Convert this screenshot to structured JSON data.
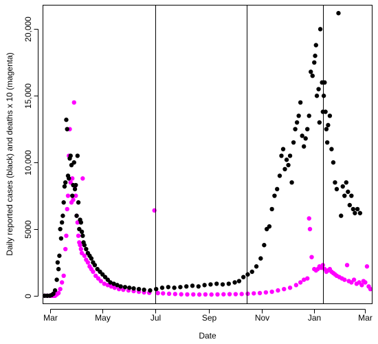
{
  "chart_data": {
    "type": "scatter",
    "title": "",
    "xlabel": "Date",
    "ylabel": "Daily reported cases (black) and deaths x 10 (magenta)",
    "xlim": [
      "2020-02-22",
      "2021-03-09"
    ],
    "ylim": [
      -600,
      21800
    ],
    "x_ticks": [
      {
        "date": "2020-03-01",
        "label": "Mar"
      },
      {
        "date": "2020-05-01",
        "label": "May"
      },
      {
        "date": "2020-07-01",
        "label": "Jul"
      },
      {
        "date": "2020-09-01",
        "label": "Sep"
      },
      {
        "date": "2020-11-01",
        "label": "Nov"
      },
      {
        "date": "2021-01-01",
        "label": "Jan"
      },
      {
        "date": "2021-03-01",
        "label": "Mar"
      }
    ],
    "y_ticks": [
      {
        "value": 0,
        "label": "0"
      },
      {
        "value": 5000,
        "label": "5000"
      },
      {
        "value": 10000,
        "label": "10,000"
      },
      {
        "value": 15000,
        "label": "15,000"
      },
      {
        "value": 20000,
        "label": "20,000"
      }
    ],
    "vlines": [
      "2020-07-01",
      "2020-10-15",
      "2021-01-11"
    ],
    "grid": false,
    "legend": "none",
    "colors": {
      "cases": "#000000",
      "deaths": "#ff00ff"
    },
    "series": [
      {
        "key": "cases",
        "points": [
          [
            "2020-02-24",
            0
          ],
          [
            "2020-02-27",
            0
          ],
          [
            "2020-03-01",
            10
          ],
          [
            "2020-03-03",
            50
          ],
          [
            "2020-03-05",
            150
          ],
          [
            "2020-03-07",
            400
          ],
          [
            "2020-03-09",
            1200
          ],
          [
            "2020-03-10",
            2500
          ],
          [
            "2020-03-11",
            2000
          ],
          [
            "2020-03-12",
            3000
          ],
          [
            "2020-03-13",
            5000
          ],
          [
            "2020-03-14",
            4300
          ],
          [
            "2020-03-15",
            5500
          ],
          [
            "2020-03-16",
            6000
          ],
          [
            "2020-03-17",
            7000
          ],
          [
            "2020-03-18",
            8200
          ],
          [
            "2020-03-19",
            8500
          ],
          [
            "2020-03-20",
            13200
          ],
          [
            "2020-03-21",
            12500
          ],
          [
            "2020-03-22",
            9000
          ],
          [
            "2020-03-23",
            8800
          ],
          [
            "2020-03-24",
            10300
          ],
          [
            "2020-03-25",
            10500
          ],
          [
            "2020-03-26",
            9800
          ],
          [
            "2020-03-27",
            7500
          ],
          [
            "2020-03-28",
            8300
          ],
          [
            "2020-03-29",
            10000
          ],
          [
            "2020-03-30",
            8000
          ],
          [
            "2020-03-31",
            8300
          ],
          [
            "2020-04-01",
            6000
          ],
          [
            "2020-04-02",
            10500
          ],
          [
            "2020-04-03",
            7000
          ],
          [
            "2020-04-04",
            5000
          ],
          [
            "2020-04-05",
            5700
          ],
          [
            "2020-04-06",
            5500
          ],
          [
            "2020-04-07",
            4800
          ],
          [
            "2020-04-08",
            4500
          ],
          [
            "2020-04-09",
            4000
          ],
          [
            "2020-04-10",
            3800
          ],
          [
            "2020-04-12",
            3500
          ],
          [
            "2020-04-14",
            3200
          ],
          [
            "2020-04-16",
            3000
          ],
          [
            "2020-04-18",
            2800
          ],
          [
            "2020-04-20",
            2500
          ],
          [
            "2020-04-22",
            2300
          ],
          [
            "2020-04-25",
            2000
          ],
          [
            "2020-04-28",
            1800
          ],
          [
            "2020-05-01",
            1600
          ],
          [
            "2020-05-04",
            1400
          ],
          [
            "2020-05-07",
            1200
          ],
          [
            "2020-05-10",
            1000
          ],
          [
            "2020-05-14",
            900
          ],
          [
            "2020-05-18",
            800
          ],
          [
            "2020-05-22",
            700
          ],
          [
            "2020-05-27",
            650
          ],
          [
            "2020-06-01",
            600
          ],
          [
            "2020-06-06",
            550
          ],
          [
            "2020-06-12",
            500
          ],
          [
            "2020-06-18",
            450
          ],
          [
            "2020-06-25",
            400
          ],
          [
            "2020-07-02",
            500
          ],
          [
            "2020-07-09",
            600
          ],
          [
            "2020-07-16",
            650
          ],
          [
            "2020-07-23",
            600
          ],
          [
            "2020-07-30",
            650
          ],
          [
            "2020-08-06",
            700
          ],
          [
            "2020-08-13",
            750
          ],
          [
            "2020-08-20",
            700
          ],
          [
            "2020-08-27",
            800
          ],
          [
            "2020-09-03",
            850
          ],
          [
            "2020-09-10",
            900
          ],
          [
            "2020-09-17",
            850
          ],
          [
            "2020-09-24",
            900
          ],
          [
            "2020-10-01",
            1000
          ],
          [
            "2020-10-06",
            1100
          ],
          [
            "2020-10-11",
            1400
          ],
          [
            "2020-10-16",
            1600
          ],
          [
            "2020-10-21",
            1800
          ],
          [
            "2020-10-26",
            2200
          ],
          [
            "2020-10-31",
            2800
          ],
          [
            "2020-11-04",
            3800
          ],
          [
            "2020-11-07",
            5000
          ],
          [
            "2020-11-10",
            5200
          ],
          [
            "2020-11-13",
            6500
          ],
          [
            "2020-11-16",
            7500
          ],
          [
            "2020-11-19",
            8000
          ],
          [
            "2020-11-22",
            9000
          ],
          [
            "2020-11-24",
            10500
          ],
          [
            "2020-11-26",
            11000
          ],
          [
            "2020-11-28",
            9500
          ],
          [
            "2020-11-30",
            10200
          ],
          [
            "2020-12-02",
            9800
          ],
          [
            "2020-12-04",
            10500
          ],
          [
            "2020-12-06",
            8500
          ],
          [
            "2020-12-08",
            11500
          ],
          [
            "2020-12-10",
            12500
          ],
          [
            "2020-12-12",
            13000
          ],
          [
            "2020-12-14",
            13500
          ],
          [
            "2020-12-16",
            14500
          ],
          [
            "2020-12-18",
            12000
          ],
          [
            "2020-12-20",
            11200
          ],
          [
            "2020-12-22",
            11800
          ],
          [
            "2020-12-24",
            12500
          ],
          [
            "2020-12-26",
            13500
          ],
          [
            "2020-12-28",
            16800
          ],
          [
            "2020-12-30",
            16500
          ],
          [
            "2021-01-01",
            17500
          ],
          [
            "2021-01-02",
            18000
          ],
          [
            "2021-01-03",
            18800
          ],
          [
            "2021-01-04",
            15000
          ],
          [
            "2021-01-06",
            15500
          ],
          [
            "2021-01-07",
            13000
          ],
          [
            "2021-01-08",
            20000
          ],
          [
            "2021-01-10",
            16000
          ],
          [
            "2021-01-11",
            13800
          ],
          [
            "2021-01-12",
            15000
          ],
          [
            "2021-01-13",
            16000
          ],
          [
            "2021-01-14",
            13800
          ],
          [
            "2021-01-15",
            12500
          ],
          [
            "2021-01-16",
            11500
          ],
          [
            "2021-01-17",
            12800
          ],
          [
            "2021-01-19",
            13500
          ],
          [
            "2021-01-21",
            11000
          ],
          [
            "2021-01-23",
            10000
          ],
          [
            "2021-01-25",
            8500
          ],
          [
            "2021-01-27",
            8000
          ],
          [
            "2021-01-29",
            21200
          ],
          [
            "2021-02-01",
            6000
          ],
          [
            "2021-02-03",
            8200
          ],
          [
            "2021-02-05",
            7500
          ],
          [
            "2021-02-07",
            8500
          ],
          [
            "2021-02-09",
            7800
          ],
          [
            "2021-02-11",
            6800
          ],
          [
            "2021-02-13",
            7500
          ],
          [
            "2021-02-15",
            6500
          ],
          [
            "2021-02-17",
            6200
          ],
          [
            "2021-02-20",
            6500
          ],
          [
            "2021-02-23",
            6200
          ]
        ]
      },
      {
        "key": "deaths",
        "points": [
          [
            "2020-02-24",
            0
          ],
          [
            "2020-02-27",
            0
          ],
          [
            "2020-03-01",
            0
          ],
          [
            "2020-03-03",
            0
          ],
          [
            "2020-03-05",
            0
          ],
          [
            "2020-03-07",
            0
          ],
          [
            "2020-03-09",
            100
          ],
          [
            "2020-03-11",
            200
          ],
          [
            "2020-03-13",
            500
          ],
          [
            "2020-03-15",
            1000
          ],
          [
            "2020-03-17",
            1500
          ],
          [
            "2020-03-19",
            3500
          ],
          [
            "2020-03-20",
            4500
          ],
          [
            "2020-03-21",
            6500
          ],
          [
            "2020-03-22",
            7500
          ],
          [
            "2020-03-23",
            10500
          ],
          [
            "2020-03-24",
            12500
          ],
          [
            "2020-03-25",
            8500
          ],
          [
            "2020-03-26",
            7000
          ],
          [
            "2020-03-27",
            8800
          ],
          [
            "2020-03-28",
            7200
          ],
          [
            "2020-03-29",
            14500
          ],
          [
            "2020-03-30",
            8200
          ],
          [
            "2020-03-31",
            7500
          ],
          [
            "2020-04-01",
            6000
          ],
          [
            "2020-04-02",
            5500
          ],
          [
            "2020-04-03",
            4500
          ],
          [
            "2020-04-04",
            4000
          ],
          [
            "2020-04-05",
            3800
          ],
          [
            "2020-04-06",
            3500
          ],
          [
            "2020-04-07",
            3200
          ],
          [
            "2020-04-08",
            8800
          ],
          [
            "2020-04-10",
            3000
          ],
          [
            "2020-04-12",
            2700
          ],
          [
            "2020-04-14",
            2500
          ],
          [
            "2020-04-16",
            2200
          ],
          [
            "2020-04-18",
            2000
          ],
          [
            "2020-04-20",
            1800
          ],
          [
            "2020-04-23",
            1500
          ],
          [
            "2020-04-26",
            1300
          ],
          [
            "2020-04-29",
            1100
          ],
          [
            "2020-05-03",
            900
          ],
          [
            "2020-05-07",
            800
          ],
          [
            "2020-05-11",
            700
          ],
          [
            "2020-05-15",
            600
          ],
          [
            "2020-05-20",
            500
          ],
          [
            "2020-05-25",
            450
          ],
          [
            "2020-05-31",
            400
          ],
          [
            "2020-06-06",
            350
          ],
          [
            "2020-06-12",
            300
          ],
          [
            "2020-06-18",
            250
          ],
          [
            "2020-06-24",
            220
          ],
          [
            "2020-06-30",
            6400
          ],
          [
            "2020-07-04",
            200
          ],
          [
            "2020-07-10",
            180
          ],
          [
            "2020-07-17",
            150
          ],
          [
            "2020-07-24",
            130
          ],
          [
            "2020-07-31",
            110
          ],
          [
            "2020-08-07",
            100
          ],
          [
            "2020-08-14",
            100
          ],
          [
            "2020-08-21",
            90
          ],
          [
            "2020-08-28",
            100
          ],
          [
            "2020-09-04",
            90
          ],
          [
            "2020-09-11",
            100
          ],
          [
            "2020-09-18",
            110
          ],
          [
            "2020-09-25",
            120
          ],
          [
            "2020-10-02",
            120
          ],
          [
            "2020-10-09",
            130
          ],
          [
            "2020-10-16",
            150
          ],
          [
            "2020-10-23",
            180
          ],
          [
            "2020-10-30",
            200
          ],
          [
            "2020-11-06",
            250
          ],
          [
            "2020-11-13",
            300
          ],
          [
            "2020-11-20",
            400
          ],
          [
            "2020-11-27",
            500
          ],
          [
            "2020-12-04",
            600
          ],
          [
            "2020-12-11",
            800
          ],
          [
            "2020-12-16",
            1000
          ],
          [
            "2020-12-20",
            1200
          ],
          [
            "2020-12-24",
            1300
          ],
          [
            "2020-12-26",
            5800
          ],
          [
            "2020-12-27",
            5000
          ],
          [
            "2020-12-29",
            2900
          ],
          [
            "2021-01-01",
            2000
          ],
          [
            "2021-01-03",
            1900
          ],
          [
            "2021-01-05",
            2000
          ],
          [
            "2021-01-07",
            2200
          ],
          [
            "2021-01-09",
            2100
          ],
          [
            "2021-01-11",
            2300
          ],
          [
            "2021-01-13",
            2000
          ],
          [
            "2021-01-15",
            1800
          ],
          [
            "2021-01-17",
            1900
          ],
          [
            "2021-01-19",
            2000
          ],
          [
            "2021-01-21",
            1800
          ],
          [
            "2021-01-23",
            1700
          ],
          [
            "2021-01-25",
            1600
          ],
          [
            "2021-01-27",
            1500
          ],
          [
            "2021-01-30",
            1400
          ],
          [
            "2021-02-02",
            1300
          ],
          [
            "2021-02-05",
            1200
          ],
          [
            "2021-02-08",
            2300
          ],
          [
            "2021-02-10",
            1100
          ],
          [
            "2021-02-13",
            1000
          ],
          [
            "2021-02-16",
            1200
          ],
          [
            "2021-02-19",
            900
          ],
          [
            "2021-02-22",
            1000
          ],
          [
            "2021-02-25",
            800
          ],
          [
            "2021-02-27",
            1100
          ],
          [
            "2021-03-01",
            1000
          ],
          [
            "2021-03-03",
            2200
          ],
          [
            "2021-03-05",
            700
          ],
          [
            "2021-03-07",
            500
          ]
        ]
      }
    ]
  }
}
